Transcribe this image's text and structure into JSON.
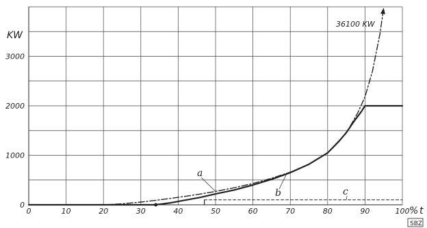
{
  "chart_data": {
    "type": "line",
    "ylabel": "KW",
    "xlabel": "t",
    "x_unit": "%",
    "xlim": [
      0,
      100
    ],
    "ylim": [
      0,
      4000
    ],
    "x_ticks": [
      0,
      10,
      20,
      30,
      40,
      50,
      60,
      70,
      80,
      90,
      100
    ],
    "y_ticks": [
      0,
      1000,
      2000,
      3000
    ],
    "y_gridlines": [
      500,
      1000,
      1500,
      2000,
      2500,
      3000,
      3500,
      4000
    ],
    "grid": true,
    "series": [
      {
        "name": "a",
        "style": "dash-dot",
        "x": [
          20,
          25,
          30,
          35,
          40,
          45,
          50,
          55,
          60,
          65,
          70,
          75,
          80,
          85,
          88,
          90,
          92,
          94,
          95
        ],
        "y": [
          0,
          20,
          55,
          100,
          150,
          205,
          270,
          345,
          430,
          535,
          660,
          820,
          1050,
          1450,
          1850,
          2180,
          2700,
          3450,
          3980
        ]
      },
      {
        "name": "b",
        "style": "solid",
        "x": [
          0,
          34,
          38,
          42,
          46,
          50,
          55,
          60,
          65,
          70,
          75,
          80,
          83,
          85,
          87,
          89,
          90,
          100
        ],
        "y": [
          0,
          0,
          40,
          95,
          150,
          220,
          300,
          400,
          515,
          650,
          820,
          1050,
          1280,
          1460,
          1680,
          1880,
          2000,
          2000
        ]
      },
      {
        "name": "c",
        "style": "dashed",
        "x": [
          47,
          100
        ],
        "y": [
          100,
          100
        ]
      }
    ],
    "annotations": [
      "36100 KW"
    ],
    "colors": {
      "lines": "#222222",
      "grid": "#444444"
    }
  },
  "stamp": "SBZ"
}
